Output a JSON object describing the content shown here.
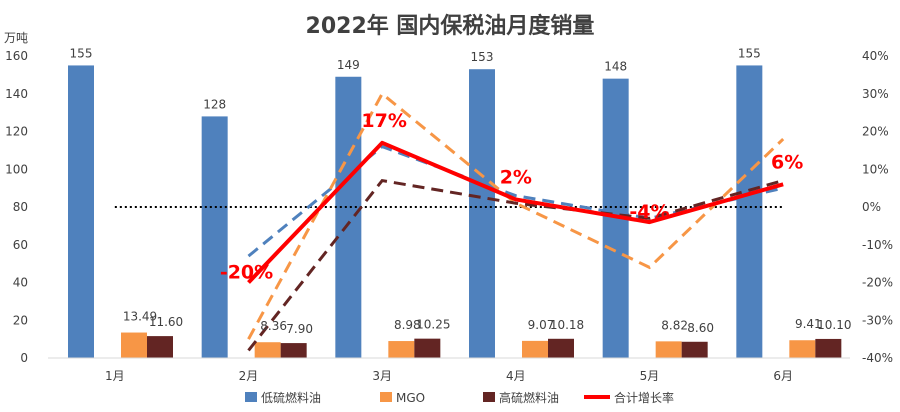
{
  "chart_data": {
    "type": "bar",
    "title": "2022年 国内保税油月度销量",
    "y_unit": "万吨",
    "categories": [
      "1月",
      "2月",
      "3月",
      "4月",
      "5月",
      "6月"
    ],
    "ylim": [
      0,
      160
    ],
    "y_ticks": [
      0,
      20,
      40,
      60,
      80,
      100,
      120,
      140,
      160
    ],
    "y2lim": [
      -40,
      40
    ],
    "y2_ticks": [
      "-40%",
      "-30%",
      "-20%",
      "-10%",
      "0%",
      "10%",
      "20%",
      "30%",
      "40%"
    ],
    "y2_values": [
      -40,
      -30,
      -20,
      -10,
      0,
      10,
      20,
      30,
      40
    ],
    "series": [
      {
        "name": "低硫燃料油",
        "kind": "bar",
        "color": "#4f81bd",
        "values": [
          155,
          128,
          149,
          153,
          148,
          155
        ],
        "labels": [
          "155",
          "128",
          "149",
          "153",
          "148",
          "155"
        ]
      },
      {
        "name": "MGO",
        "kind": "bar",
        "color": "#f79646",
        "values": [
          13.49,
          8.36,
          8.98,
          9.07,
          8.82,
          9.41
        ],
        "labels": [
          "13.49",
          "8.36",
          "8.98",
          "9.07",
          "8.82",
          "9.41"
        ]
      },
      {
        "name": "高硫燃料油",
        "kind": "bar",
        "color": "#632523",
        "values": [
          11.6,
          7.9,
          10.25,
          10.18,
          8.6,
          10.1
        ],
        "labels": [
          "11.60",
          "7.90",
          "10.25",
          "10.18",
          "8.60",
          "10.10"
        ]
      },
      {
        "name": "合计增长率",
        "kind": "line",
        "axis": "right",
        "color": "#ff0000",
        "values": [
          null,
          -20,
          17,
          2,
          -4,
          6
        ],
        "labels": [
          "",
          "-20%",
          "17%",
          "2%",
          "-4%",
          "6%"
        ]
      }
    ],
    "growth_dashed": [
      {
        "color": "#4f81bd",
        "values": [
          null,
          -13,
          16,
          3,
          -3,
          5
        ]
      },
      {
        "color": "#f79646",
        "values": [
          null,
          -35,
          30,
          1,
          -16,
          18
        ]
      },
      {
        "color": "#632523",
        "values": [
          null,
          -38,
          7,
          1,
          -3,
          7
        ]
      }
    ],
    "reference_line": {
      "axis": "right",
      "value": 0,
      "style": "dotted",
      "color": "#000000"
    },
    "legend_position": "bottom"
  }
}
